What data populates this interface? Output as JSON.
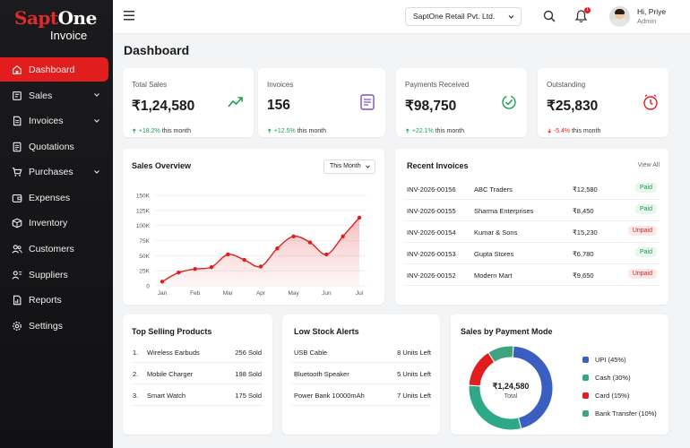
{
  "brand": {
    "main_a": "Sapt",
    "main_b": "One",
    "sub": "Invoice"
  },
  "sidebar": {
    "items": [
      {
        "label": "Dashboard",
        "icon": "home-icon",
        "active": true,
        "chevron": false
      },
      {
        "label": "Sales",
        "icon": "sales-icon",
        "active": false,
        "chevron": true
      },
      {
        "label": "Invoices",
        "icon": "invoice-icon",
        "active": false,
        "chevron": true
      },
      {
        "label": "Quotations",
        "icon": "quotation-icon",
        "active": false,
        "chevron": false
      },
      {
        "label": "Purchases",
        "icon": "cart-icon",
        "active": false,
        "chevron": true
      },
      {
        "label": "Expenses",
        "icon": "wallet-icon",
        "active": false,
        "chevron": false
      },
      {
        "label": "Inventory",
        "icon": "box-icon",
        "active": false,
        "chevron": false
      },
      {
        "label": "Customers",
        "icon": "users-icon",
        "active": false,
        "chevron": false
      },
      {
        "label": "Suppliers",
        "icon": "truck-icon",
        "active": false,
        "chevron": false
      },
      {
        "label": "Reports",
        "icon": "report-icon",
        "active": false,
        "chevron": false
      },
      {
        "label": "Settings",
        "icon": "gear-icon",
        "active": false,
        "chevron": false
      }
    ]
  },
  "topbar": {
    "company": "SaptOne Retail Pvt. Ltd.",
    "notification_count": "1",
    "user_name": "Hi, Priye",
    "user_role": "Admin"
  },
  "page_title": "Dashboard",
  "stats": [
    {
      "label": "Total Sales",
      "value": "₹1,24,580",
      "delta": "+18.2%",
      "delta_suffix": " this month",
      "direction": "up",
      "icon": "trend-up-icon",
      "color": "#1aa251"
    },
    {
      "label": "Invoices",
      "value": "156",
      "delta": "+12.5%",
      "delta_suffix": " this month",
      "direction": "up",
      "icon": "document-icon",
      "color": "#7c4dcc"
    },
    {
      "label": "Payments Received",
      "value": "₹98,750",
      "delta": "+22.1%",
      "delta_suffix": " this month",
      "direction": "up",
      "icon": "payment-check-icon",
      "color": "#1aa251"
    },
    {
      "label": "Outstanding",
      "value": "₹25,830",
      "delta": "-5.4%",
      "delta_suffix": " this month",
      "direction": "down",
      "icon": "clock-alert-icon",
      "color": "#e11d1d"
    }
  ],
  "sales_overview": {
    "title": "Sales Overview",
    "range": "This Month",
    "chart_data": {
      "type": "area",
      "x": [
        "Jan",
        "Feb",
        "Mar",
        "Apr",
        "May",
        "Jun",
        "Jul"
      ],
      "yticks": [
        "150K",
        "125K",
        "100K",
        "75K",
        "50K",
        "25K",
        "0"
      ],
      "ylim": [
        0,
        150000
      ],
      "series": [
        {
          "x": [
            0,
            0.5,
            1,
            1.5,
            2,
            2.5,
            3,
            3.5,
            4,
            4.5,
            5,
            5.5,
            6
          ],
          "values": [
            7000,
            22000,
            28000,
            31000,
            52000,
            43000,
            32000,
            62000,
            82000,
            72000,
            52000,
            82000,
            113000
          ]
        }
      ],
      "color": "#e11d1d",
      "grid": true
    }
  },
  "recent_invoices": {
    "title": "Recent Invoices",
    "view_all": "View All",
    "rows": [
      {
        "id": "INV-2026-00156",
        "customer": "ABC Traders",
        "amount": "₹12,580",
        "status": "Paid"
      },
      {
        "id": "INV-2026-00155",
        "customer": "Sharma Enterprises",
        "amount": "₹8,450",
        "status": "Paid"
      },
      {
        "id": "INV-2026-00154",
        "customer": "Kumar & Sons",
        "amount": "₹15,230",
        "status": "Unpaid"
      },
      {
        "id": "INV-2026-00153",
        "customer": "Gupta Stores",
        "amount": "₹6,780",
        "status": "Paid"
      },
      {
        "id": "INV-2026-00152",
        "customer": "Modern Mart",
        "amount": "₹9,650",
        "status": "Unpaid"
      }
    ]
  },
  "top_selling": {
    "title": "Top Selling Products",
    "rows": [
      {
        "rank": "1.",
        "name": "Wireless Earbuds",
        "sold": "256 Sold"
      },
      {
        "rank": "2.",
        "name": "Mobile Charger",
        "sold": "198 Sold"
      },
      {
        "rank": "3.",
        "name": "Smart Watch",
        "sold": "175 Sold"
      }
    ]
  },
  "low_stock": {
    "title": "Low Stock Alerts",
    "rows": [
      {
        "name": "USB Cable",
        "units": "8 Units Left"
      },
      {
        "name": "Bluetooth Speaker",
        "units": "5 Units Left"
      },
      {
        "name": "Power Bank 10000mAh",
        "units": "7 Units Left"
      }
    ]
  },
  "payment_mode": {
    "title": "Sales by Payment Mode",
    "center_value": "₹1,24,580",
    "center_label": "Total",
    "chart_data": {
      "type": "pie",
      "labels": [
        "UPI (45%)",
        "Cash (30%)",
        "Card (15%)",
        "Bank Transfer (10%)"
      ],
      "values": [
        45,
        30,
        15,
        10
      ],
      "colors": [
        "#3b5fc0",
        "#2fa88a",
        "#e11d1d",
        "#3fa37f"
      ]
    }
  }
}
